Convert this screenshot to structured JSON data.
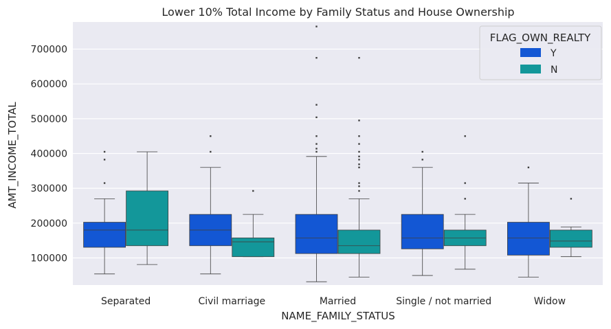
{
  "chart_data": {
    "type": "box",
    "title": "Lower 10% Total Income by Family Status and House Ownership",
    "xlabel": "NAME_FAMILY_STATUS",
    "ylabel": "AMT_INCOME_TOTAL",
    "ylim": [
      22000,
      778000
    ],
    "yticks": [
      100000,
      200000,
      300000,
      400000,
      500000,
      600000,
      700000
    ],
    "ytick_labels": [
      "100000",
      "200000",
      "300000",
      "400000",
      "500000",
      "600000",
      "700000"
    ],
    "categories": [
      "Separated",
      "Civil marriage",
      "Married",
      "Single / not married",
      "Widow"
    ],
    "grid": true,
    "legend": {
      "title": "FLAG_OWN_REALTY",
      "placement": "top-right"
    },
    "series": [
      {
        "name": "Y",
        "color": "#1357d4",
        "boxes": [
          {
            "whislo": 54000,
            "q1": 130500,
            "med": 180000,
            "q3": 202500,
            "whishi": 270000,
            "fliers": [
              315000,
              382500,
              405000
            ]
          },
          {
            "whislo": 54000,
            "q1": 135000,
            "med": 180000,
            "q3": 225000,
            "whishi": 360000,
            "fliers": [
              405000,
              450000
            ]
          },
          {
            "whislo": 31500,
            "q1": 112500,
            "med": 157500,
            "q3": 225000,
            "whishi": 391500,
            "fliers": [
              405000,
              414000,
              427500,
              450000,
              504000,
              540000,
              675000,
              765000
            ]
          },
          {
            "whislo": 49500,
            "q1": 126000,
            "med": 157500,
            "q3": 225000,
            "whishi": 360000,
            "fliers": [
              382500,
              405000
            ]
          },
          {
            "whislo": 45000,
            "q1": 108000,
            "med": 157500,
            "q3": 202500,
            "whishi": 315000,
            "fliers": [
              360000
            ]
          }
        ]
      },
      {
        "name": "N",
        "color": "#13979a",
        "boxes": [
          {
            "whislo": 81000,
            "q1": 135000,
            "med": 180000,
            "q3": 292500,
            "whishi": 405000,
            "fliers": []
          },
          {
            "whislo": 103500,
            "q1": 103500,
            "med": 146250,
            "q3": 157500,
            "whishi": 225000,
            "fliers": [
              292500
            ]
          },
          {
            "whislo": 45000,
            "q1": 112500,
            "med": 135000,
            "q3": 180000,
            "whishi": 270000,
            "fliers": [
              292500,
              306000,
              315000,
              360000,
              369000,
              382500,
              391500,
              405000,
              427500,
              450000,
              495000,
              675000
            ]
          },
          {
            "whislo": 67500,
            "q1": 135000,
            "med": 157500,
            "q3": 180000,
            "whishi": 225000,
            "fliers": [
              270000,
              315000,
              450000
            ]
          },
          {
            "whislo": 103500,
            "q1": 130500,
            "med": 148500,
            "q3": 180000,
            "whishi": 189000,
            "fliers": [
              270000
            ]
          }
        ]
      }
    ]
  }
}
